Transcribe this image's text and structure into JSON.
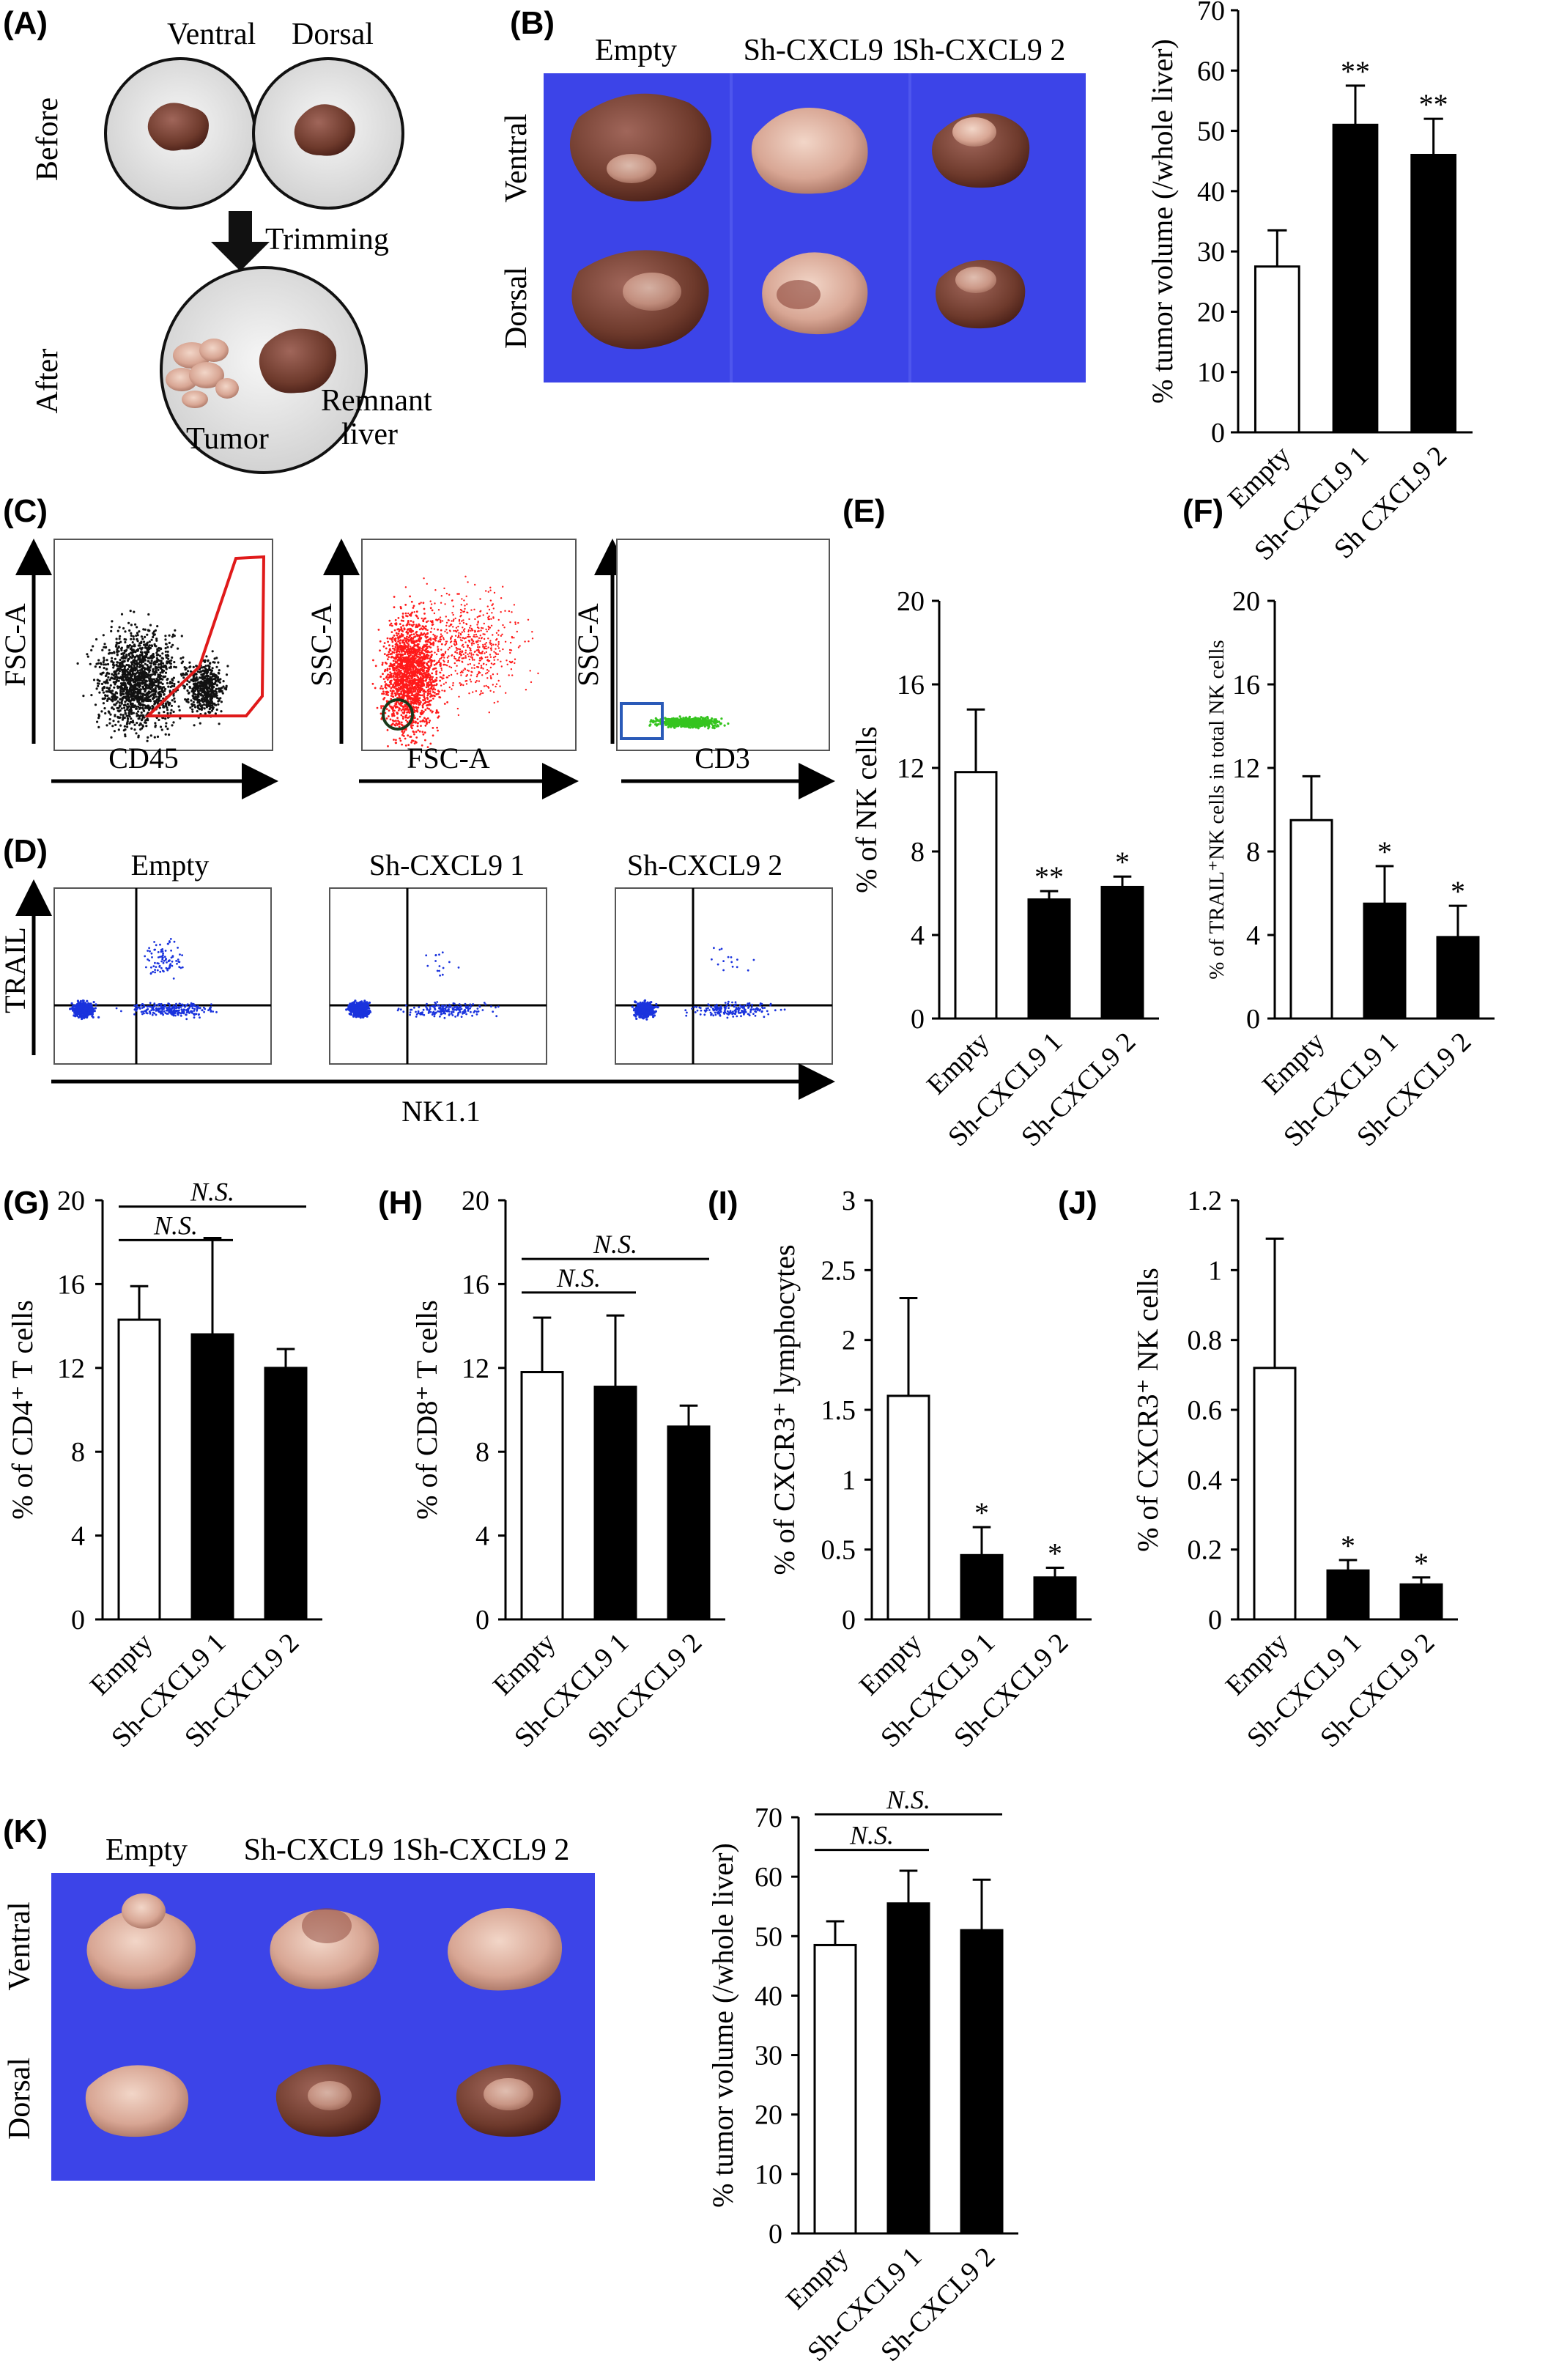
{
  "colors": {
    "open_bar": "#ffffff",
    "filled_bar": "#000000",
    "photo_blue": "#3c44e8",
    "liver_brown": "#6e3a2c",
    "tumor_pink": "#d9a999",
    "flow_black": "#111111",
    "flow_red": "#ff1a1a",
    "flow_green": "#35c41f",
    "flow_blue": "#1a33dd",
    "gate_red": "#e01a1a",
    "gate_blue": "#2a5ab8",
    "gate_dark": "#1a3a1a"
  },
  "panels": {
    "A": {
      "label": "(A)",
      "ventral": "Ventral",
      "dorsal": "Dorsal",
      "before": "Before",
      "after": "After",
      "trimming": "Trimming",
      "tumor": "Tumor",
      "remnant_1": "Remnant",
      "remnant_2": "liver"
    },
    "B": {
      "label": "(B)",
      "col_empty": "Empty",
      "col_sh1": "Sh-CXCL9 1",
      "col_sh2": "Sh-CXCL9 2",
      "row_ventral": "Ventral",
      "row_dorsal": "Dorsal"
    },
    "C": {
      "label": "(C)",
      "plot1_y": "FSC-A",
      "plot1_x": "CD45",
      "plot2_y": "SSC-A",
      "plot2_x": "FSC-A",
      "plot3_y": "SSC-A",
      "plot3_x": "CD3"
    },
    "D": {
      "label": "(D)",
      "t_empty": "Empty",
      "t_sh1": "Sh-CXCL9 1",
      "t_sh2": "Sh-CXCL9 2",
      "y": "TRAIL",
      "x": "NK1.1"
    },
    "K": {
      "label": "(K)",
      "col_empty": "Empty",
      "col_sh1": "Sh-CXCL9 1",
      "col_sh2": "Sh-CXCL9 2",
      "row_ventral": "Ventral",
      "row_dorsal": "Dorsal"
    }
  },
  "chart_data": [
    {
      "id": "B",
      "type": "bar",
      "categories": [
        "Empty",
        "Sh-CXCL9 1",
        "Sh CXCL9 2"
      ],
      "values": [
        27.5,
        51,
        46
      ],
      "errors": [
        6,
        6.5,
        6
      ],
      "ylabel": "% tumor volume (/whole liver)",
      "ylim": [
        0,
        70
      ],
      "yticks": [
        0,
        10,
        20,
        30,
        40,
        50,
        60,
        70
      ],
      "significance": [
        "",
        "**",
        "**"
      ],
      "ns_brackets": []
    },
    {
      "id": "E",
      "type": "bar",
      "label": "(E)",
      "categories": [
        "Empty",
        "Sh-CXCL9 1",
        "Sh-CXCL9 2"
      ],
      "values": [
        11.8,
        5.7,
        6.3
      ],
      "errors": [
        3.0,
        0.4,
        0.5
      ],
      "ylabel": "% of NK cells",
      "ylim": [
        0,
        20
      ],
      "yticks": [
        0,
        4,
        8,
        12,
        16,
        20
      ],
      "significance": [
        "",
        "**",
        "*"
      ],
      "ns_brackets": []
    },
    {
      "id": "F",
      "type": "bar",
      "label": "(F)",
      "categories": [
        "Empty",
        "Sh-CXCL9 1",
        "Sh-CXCL9 2"
      ],
      "values": [
        9.5,
        5.5,
        3.9
      ],
      "errors": [
        2.1,
        1.8,
        1.5
      ],
      "ylabel": "% of TRAIL⁺NK cells in total NK cells",
      "ylim": [
        0,
        20
      ],
      "yticks": [
        0,
        4,
        8,
        12,
        16,
        20
      ],
      "significance": [
        "",
        "*",
        "*"
      ],
      "ns_brackets": []
    },
    {
      "id": "G",
      "type": "bar",
      "label": "(G)",
      "categories": [
        "Empty",
        "Sh-CXCL9 1",
        "Sh-CXCL9 2"
      ],
      "values": [
        14.3,
        13.6,
        12.0
      ],
      "errors": [
        1.6,
        4.6,
        0.9
      ],
      "ylabel": "% of CD4⁺ T cells",
      "ylim": [
        0,
        20
      ],
      "yticks": [
        0,
        4,
        8,
        12,
        16,
        20
      ],
      "significance": [
        "",
        "",
        ""
      ],
      "ns_brackets": [
        {
          "from": 0,
          "to": 1,
          "y": 18.1,
          "text": "N.S."
        },
        {
          "from": 0,
          "to": 2,
          "y": 19.7,
          "text": "N.S."
        }
      ]
    },
    {
      "id": "H",
      "type": "bar",
      "label": "(H)",
      "categories": [
        "Empty",
        "Sh-CXCL9 1",
        "Sh-CXCL9 2"
      ],
      "values": [
        11.8,
        11.1,
        9.2
      ],
      "errors": [
        2.6,
        3.4,
        1.0
      ],
      "ylabel": "% of CD8⁺ T cells",
      "ylim": [
        0,
        20
      ],
      "yticks": [
        0,
        4,
        8,
        12,
        16,
        20
      ],
      "significance": [
        "",
        "",
        ""
      ],
      "ns_brackets": [
        {
          "from": 0,
          "to": 1,
          "y": 15.6,
          "text": "N.S."
        },
        {
          "from": 0,
          "to": 2,
          "y": 17.2,
          "text": "N.S."
        }
      ]
    },
    {
      "id": "I",
      "type": "bar",
      "label": "(I)",
      "categories": [
        "Empty",
        "Sh-CXCL9 1",
        "Sh-CXCL9 2"
      ],
      "values": [
        1.6,
        0.46,
        0.3
      ],
      "errors": [
        0.7,
        0.2,
        0.07
      ],
      "ylabel": "% of CXCR3⁺ lymphocytes",
      "ylim": [
        0,
        3
      ],
      "yticks": [
        0,
        0.5,
        1,
        1.5,
        2,
        2.5,
        3
      ],
      "significance": [
        "",
        "*",
        "*"
      ],
      "ns_brackets": []
    },
    {
      "id": "J",
      "type": "bar",
      "label": "(J)",
      "categories": [
        "Empty",
        "Sh-CXCL9 1",
        "Sh-CXCL9 2"
      ],
      "values": [
        0.72,
        0.14,
        0.1
      ],
      "errors": [
        0.37,
        0.03,
        0.02
      ],
      "ylabel": "% of CXCR3⁺ NK cells",
      "ylim": [
        0,
        1.2
      ],
      "yticks": [
        0,
        0.2,
        0.4,
        0.6,
        0.8,
        1,
        1.2
      ],
      "significance": [
        "",
        "*",
        "*"
      ],
      "ns_brackets": []
    },
    {
      "id": "K",
      "type": "bar",
      "categories": [
        "Empty",
        "Sh-CXCL9 1",
        "Sh-CXCL9 2"
      ],
      "values": [
        48.5,
        55.5,
        51
      ],
      "errors": [
        4,
        5.5,
        8.5
      ],
      "ylabel": "% tumor volume (/whole liver)",
      "ylim": [
        0,
        70
      ],
      "yticks": [
        0,
        10,
        20,
        30,
        40,
        50,
        60,
        70
      ],
      "significance": [
        "",
        "",
        ""
      ],
      "ns_brackets": [
        {
          "from": 0,
          "to": 1,
          "y": 64.5,
          "text": "N.S."
        },
        {
          "from": 0,
          "to": 2,
          "y": 70.5,
          "text": "N.S."
        }
      ]
    }
  ]
}
